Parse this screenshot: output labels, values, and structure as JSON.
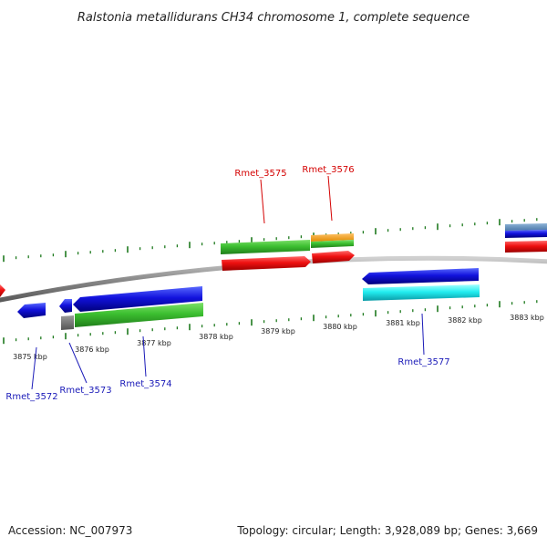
{
  "title": "Ralstonia metallidurans CH34 chromosome 1, complete sequence",
  "footer": {
    "accession": "Accession: NC_007973",
    "summary": "Topology: circular; Length: 3,928,089 bp; Genes: 3,669"
  },
  "colors": {
    "backbone": "#8a8a8a",
    "tick": "#1e7a1e",
    "forward_label": "#d40000",
    "reverse_label": "#1a1ab8"
  },
  "scale": {
    "unit": "kbp",
    "labels": [
      "3875 kbp",
      "3876 kbp",
      "3877 kbp",
      "3878 kbp",
      "3879 kbp",
      "3880 kbp",
      "3881 kbp",
      "3882 kbp",
      "3883 kbp"
    ]
  },
  "gene_labels": {
    "rmet_3575": "Rmet_3575",
    "rmet_3576": "Rmet_3576",
    "rmet_3572": "Rmet_3572",
    "rmet_3573": "Rmet_3573",
    "rmet_3574": "Rmet_3574",
    "rmet_3577": "Rmet_3577"
  }
}
